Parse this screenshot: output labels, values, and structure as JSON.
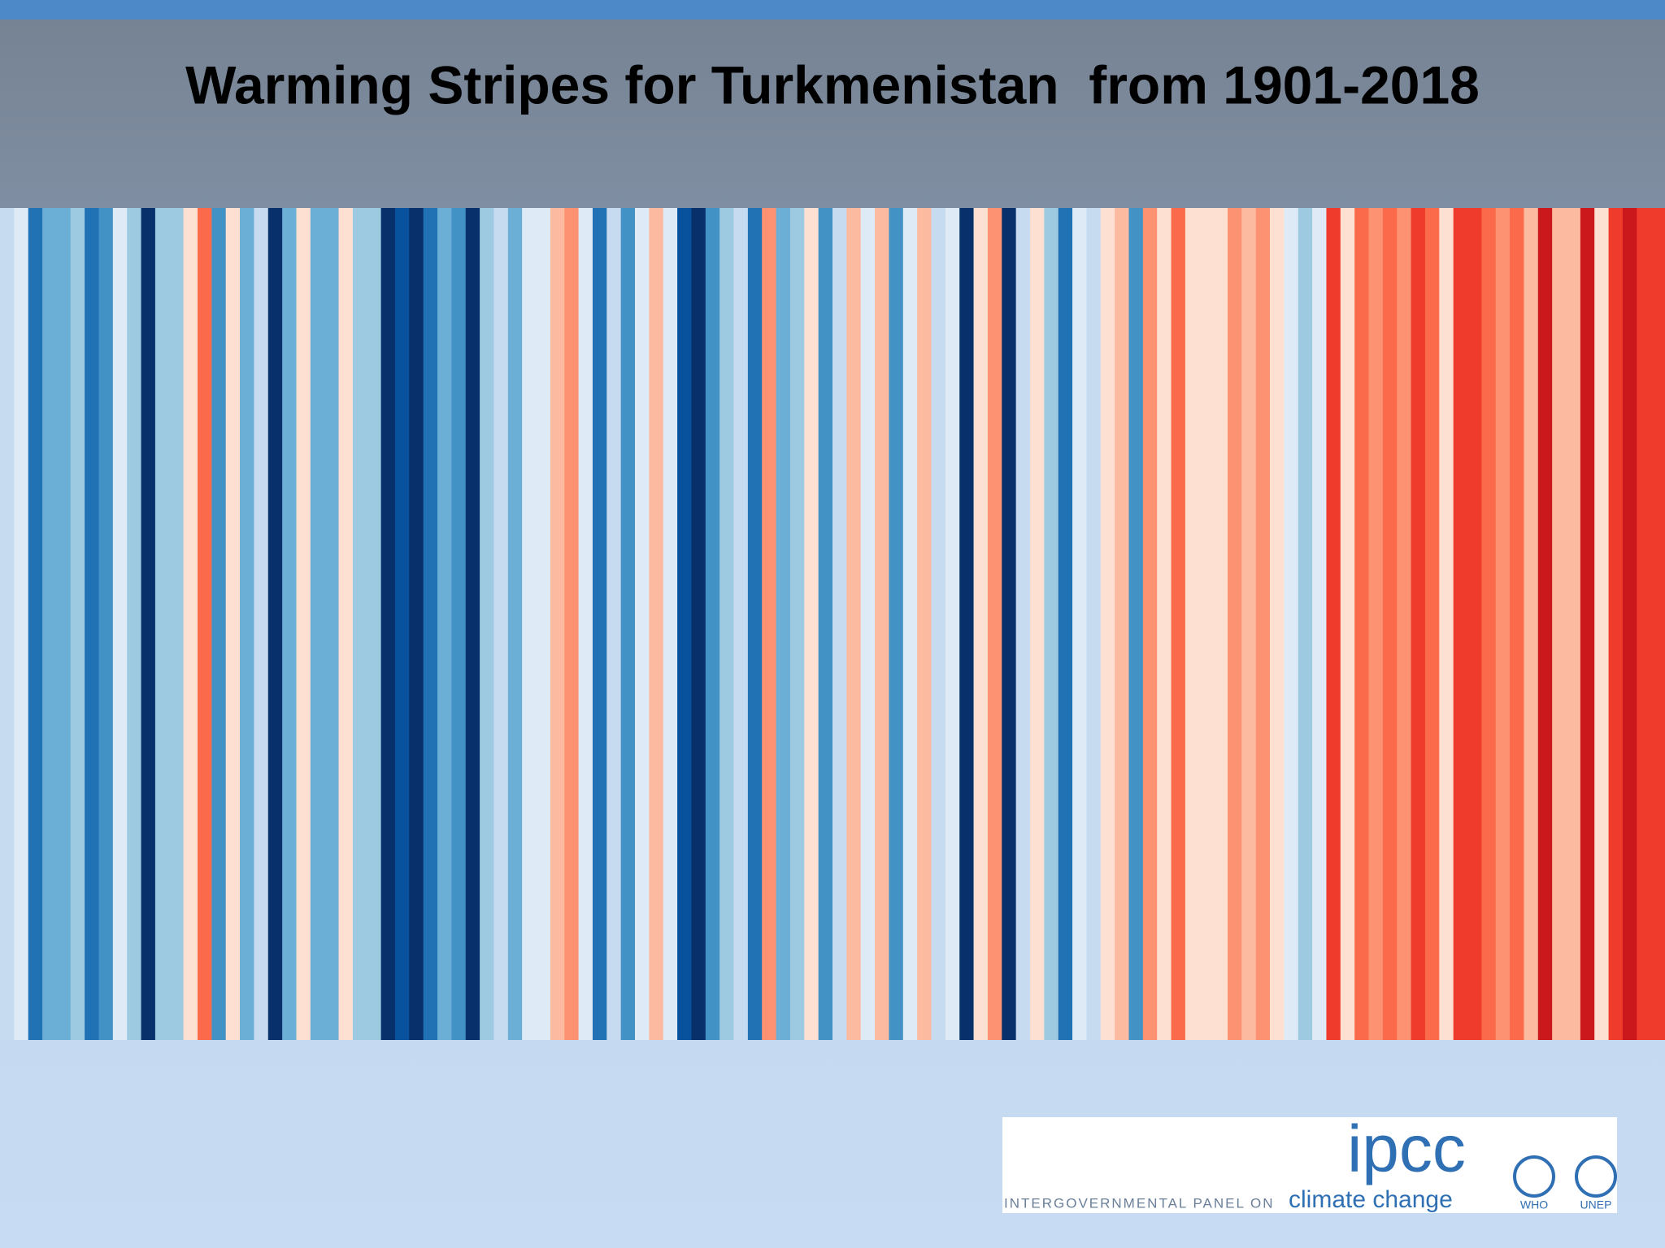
{
  "chart_data": {
    "type": "stripes",
    "title": "Warming Stripes for Turkmenistan  from 1901-2018",
    "colors": [
      "#c6dbef",
      "#deebf7",
      "#2171b5",
      "#6baed6",
      "#6baed6",
      "#9ecae1",
      "#2171b5",
      "#4292c6",
      "#deebf7",
      "#9ecae1",
      "#08306b",
      "#9ecae1",
      "#9ecae1",
      "#fee0d2",
      "#fb6a4a",
      "#4292c6",
      "#fee0d2",
      "#6baed6",
      "#c6dbef",
      "#08306b",
      "#6baed6",
      "#fee0d2",
      "#6baed6",
      "#6baed6",
      "#fee0d2",
      "#9ecae1",
      "#9ecae1",
      "#08306b",
      "#08519c",
      "#08306b",
      "#2171b5",
      "#6baed6",
      "#4292c6",
      "#08306b",
      "#9ecae1",
      "#c6dbef",
      "#6baed6",
      "#deebf7",
      "#deebf7",
      "#fcbba1",
      "#fc9272",
      "#deebf7",
      "#2171b5",
      "#c6dbef",
      "#4292c6",
      "#deebf7",
      "#fcbba1",
      "#deebf7",
      "#08519c",
      "#08306b",
      "#4292c6",
      "#9ecae1",
      "#c6dbef",
      "#2171b5",
      "#fc9272",
      "#6baed6",
      "#9ecae1",
      "#fee0d2",
      "#4292c6",
      "#c6dbef",
      "#fcbba1",
      "#deebf7",
      "#fcbba1",
      "#4292c6",
      "#deebf7",
      "#fcbba1",
      "#c6dbef",
      "#deebf7",
      "#08306b",
      "#fee0d2",
      "#fc9272",
      "#08306b",
      "#c6dbef",
      "#fee0d2",
      "#9ecae1",
      "#2171b5",
      "#deebf7",
      "#c6dbef",
      "#fee0d2",
      "#fcbba1",
      "#4292c6",
      "#fc9272",
      "#fee0d2",
      "#fb6a4a",
      "#fee0d2",
      "#fee0d2",
      "#fee0d2",
      "#fc9272",
      "#fcbba1",
      "#fc9272",
      "#fee0d2",
      "#deebf7",
      "#9ecae1",
      "#deebf7",
      "#ef3b2c",
      "#fee0d2",
      "#fb6a4a",
      "#fc9272",
      "#fb6a4a",
      "#fc9272",
      "#ef3b2c",
      "#fb6a4a",
      "#fee0d2",
      "#ef3b2c",
      "#ef3b2c",
      "#fb6a4a",
      "#fc9272",
      "#fb6a4a",
      "#fcbba1",
      "#cb181d",
      "#fcbba1",
      "#fcbba1",
      "#cb181d",
      "#fee0d2",
      "#ef3b2c",
      "#cb181d",
      "#ef3b2c",
      "#ef3b2c"
    ]
  },
  "logo": {
    "name": "ipcc",
    "tagline": "INTERGOVERNMENTAL PANEL ON",
    "tagline_emphasis": "climate change",
    "partner_1": "WHO",
    "partner_2": "UNEP"
  }
}
